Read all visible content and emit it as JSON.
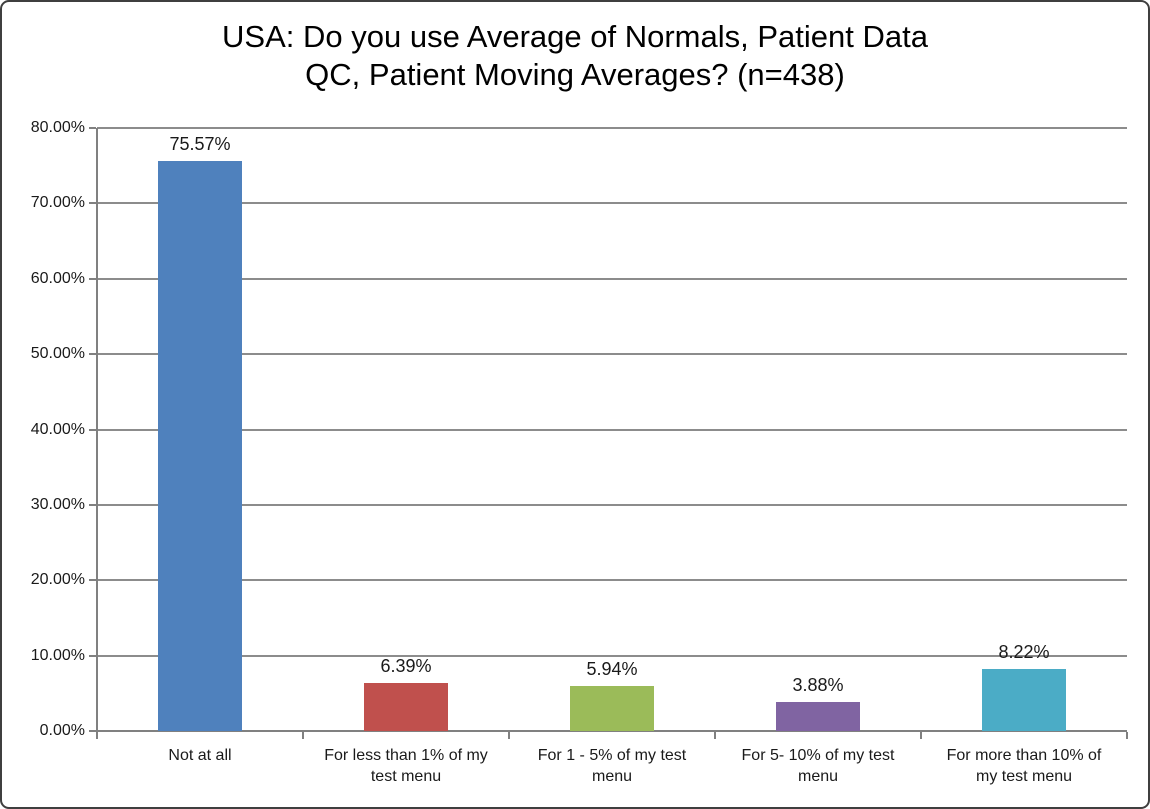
{
  "chart_data": {
    "type": "bar",
    "title": "USA: Do you use Average of Normals, Patient Data\nQC, Patient Moving Averages? (n=438)",
    "categories": [
      "Not at all",
      "For less than 1% of my test menu",
      "For 1 - 5% of my test menu",
      "For 5- 10% of my test menu",
      "For more than 10% of my test menu"
    ],
    "values": [
      75.57,
      6.39,
      5.94,
      3.88,
      8.22
    ],
    "data_labels": [
      "75.57%",
      "6.39%",
      "5.94%",
      "3.88%",
      "8.22%"
    ],
    "series_colors": [
      "#4F81BD",
      "#C0504D",
      "#9BBB59",
      "#8064A2",
      "#4BACC6"
    ],
    "xlabel": "",
    "ylabel": "",
    "ylim": [
      0,
      80
    ],
    "y_tick_step": 10,
    "y_tick_labels": [
      "0.00%",
      "10.00%",
      "20.00%",
      "30.00%",
      "40.00%",
      "50.00%",
      "60.00%",
      "70.00%",
      "80.00%"
    ],
    "grid": true,
    "legend": false,
    "colors": {
      "gridline": "#8c8c8c",
      "axis": "#808080",
      "text": "#1a1a1a",
      "background": "#ffffff",
      "border": "#3f3f3f"
    }
  }
}
